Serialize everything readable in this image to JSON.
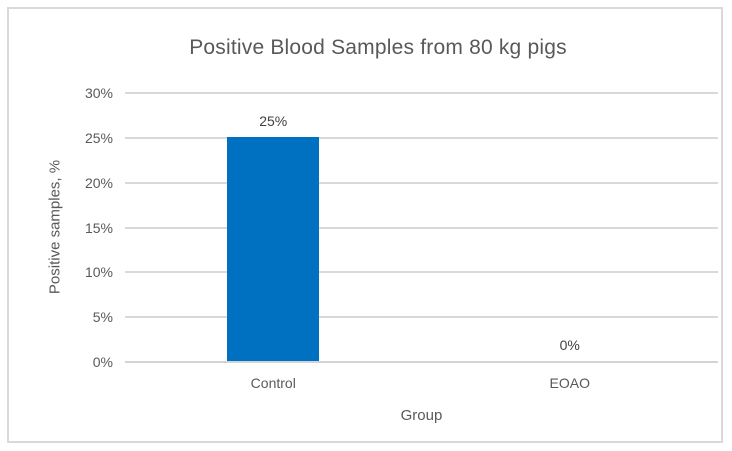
{
  "chart_data": {
    "type": "bar",
    "title": "Positive Blood Samples from 80 kg pigs",
    "xlabel": "Group",
    "ylabel": "Positive samples, %",
    "categories": [
      "Control",
      "EOAO"
    ],
    "values": [
      25,
      0
    ],
    "data_labels": [
      "25%",
      "0%"
    ],
    "ylim": [
      0,
      30
    ],
    "ytick_step": 5,
    "ytick_labels": [
      "0%",
      "5%",
      "10%",
      "15%",
      "20%",
      "25%",
      "30%"
    ],
    "grid": true,
    "legend": false,
    "colors": {
      "bar": "#0070C0",
      "gridline": "#D9D9D9",
      "axis_line": "#D3D3D3",
      "frame_border": "#D9D9D9",
      "title_text": "#595959",
      "tick_text": "#595959",
      "data_label_text": "#404040"
    }
  }
}
